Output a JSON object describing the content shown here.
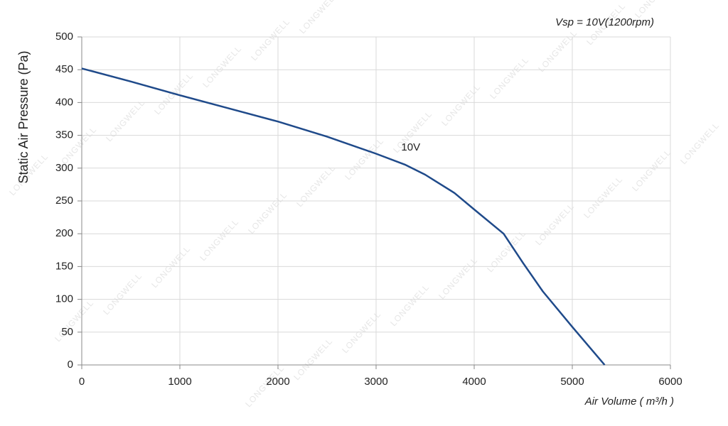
{
  "chart_data": {
    "type": "line",
    "subtitle": "Vsp = 10V(1200rpm)",
    "x_label": "Air Volume ( m³/h )",
    "y_label": "Static Air Pressure  (Pa)",
    "watermark": "LONGWELL",
    "x": [
      0,
      500,
      1000,
      1500,
      2000,
      2500,
      3000,
      3300,
      3500,
      3800,
      4000,
      4300,
      4500,
      4700,
      5000,
      5330
    ],
    "series": [
      {
        "name": "10V",
        "color": "#1f4a8a",
        "values": [
          452,
          432,
          411,
          391,
          371,
          348,
          322,
          305,
          290,
          262,
          237,
          200,
          155,
          112,
          58,
          0
        ]
      }
    ],
    "xlim": [
      0,
      6000
    ],
    "xticks": [
      0,
      1000,
      2000,
      3000,
      4000,
      5000,
      6000
    ],
    "ylim": [
      0,
      500
    ],
    "yticks": [
      0,
      50,
      100,
      150,
      200,
      250,
      300,
      350,
      400,
      450,
      500
    ],
    "grid": true
  }
}
